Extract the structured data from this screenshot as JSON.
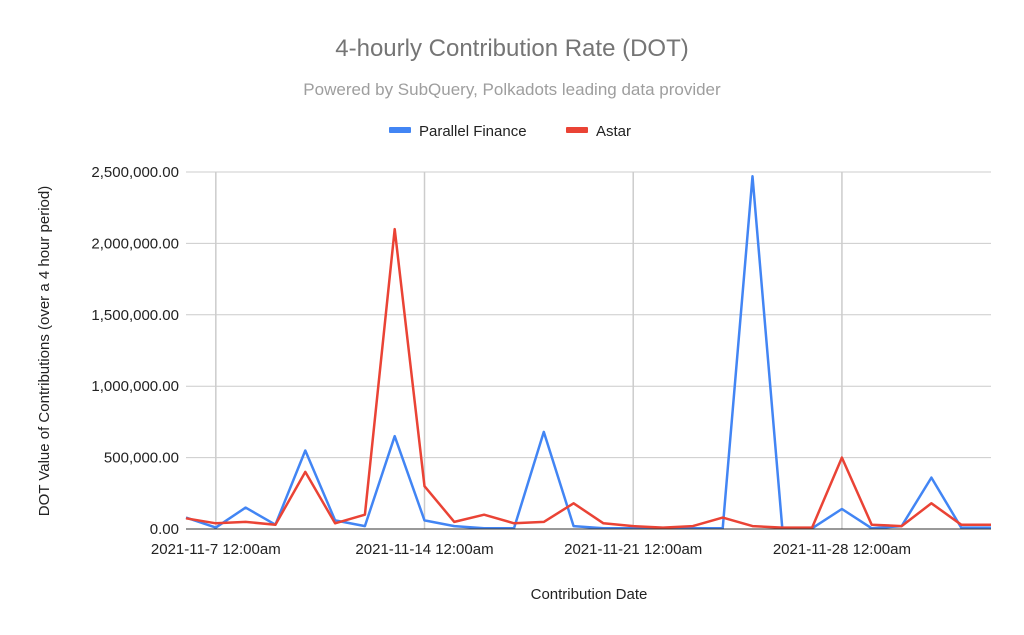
{
  "chart_data": {
    "type": "line",
    "title": "4-hourly Contribution Rate (DOT)",
    "subtitle": "Powered by SubQuery, Polkadots leading data provider",
    "xlabel": "Contribution Date",
    "ylabel": "DOT Value of Contributions (over a 4 hour period)",
    "ylim": [
      0,
      2500000
    ],
    "y_ticks": [
      0,
      500000,
      1000000,
      1500000,
      2000000,
      2500000
    ],
    "y_tick_labels": [
      "0.00",
      "500,000.00",
      "1,000,000.00",
      "1,500,000.00",
      "2,000,000.00",
      "2,500,000.00"
    ],
    "x_tick_labels": [
      "2021-11-7 12:00am",
      "2021-11-14 12:00am",
      "2021-11-21 12:00am",
      "2021-11-28 12:00am"
    ],
    "x_tick_dates": [
      "2021-11-07",
      "2021-11-14",
      "2021-11-21",
      "2021-11-28"
    ],
    "x": [
      "2021-11-06",
      "2021-11-07",
      "2021-11-08",
      "2021-11-09",
      "2021-11-10",
      "2021-11-11",
      "2021-11-12",
      "2021-11-13",
      "2021-11-14",
      "2021-11-15",
      "2021-11-16",
      "2021-11-17",
      "2021-11-18",
      "2021-11-19",
      "2021-11-20",
      "2021-11-21",
      "2021-11-22",
      "2021-11-23",
      "2021-11-24",
      "2021-11-25",
      "2021-11-26",
      "2021-11-27",
      "2021-11-28",
      "2021-11-29",
      "2021-11-30",
      "2021-12-01",
      "2021-12-02",
      "2021-12-03"
    ],
    "xlim": [
      "2021-11-06",
      "2021-12-03"
    ],
    "grid": true,
    "legend_position": "top",
    "series": [
      {
        "name": "Parallel Finance",
        "color": "#4285f4",
        "values": [
          80000,
          10000,
          150000,
          30000,
          550000,
          60000,
          20000,
          650000,
          60000,
          20000,
          5000,
          5000,
          680000,
          20000,
          5000,
          5000,
          5000,
          5000,
          5000,
          2470000,
          5000,
          5000,
          140000,
          5000,
          20000,
          360000,
          10000,
          10000
        ]
      },
      {
        "name": "Astar",
        "color": "#ea4335",
        "values": [
          75000,
          40000,
          50000,
          30000,
          400000,
          40000,
          100000,
          2100000,
          300000,
          50000,
          100000,
          40000,
          50000,
          180000,
          40000,
          20000,
          10000,
          20000,
          80000,
          20000,
          10000,
          10000,
          500000,
          30000,
          20000,
          180000,
          30000,
          30000
        ]
      }
    ]
  }
}
